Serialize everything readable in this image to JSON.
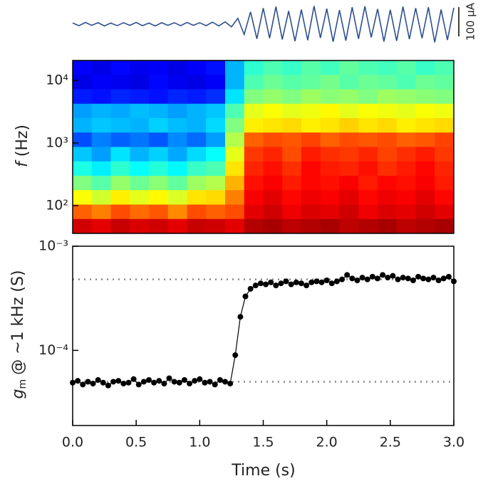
{
  "chart_data": [
    {
      "type": "trace",
      "color": "#2d4f8f",
      "xlim": [
        0,
        3
      ],
      "ylim": [
        -68,
        68
      ],
      "scale_bar": {
        "value": 100,
        "label": "100 μA"
      },
      "x": [
        0,
        0.05,
        0.1,
        0.15,
        0.2,
        0.25,
        0.3,
        0.35,
        0.4,
        0.45,
        0.5,
        0.55,
        0.6,
        0.65,
        0.7,
        0.75,
        0.8,
        0.85,
        0.9,
        0.95,
        1,
        1.05,
        1.1,
        1.15,
        1.2,
        1.25,
        1.3,
        1.35,
        1.4,
        1.45,
        1.5,
        1.55,
        1.6,
        1.65,
        1.7,
        1.75,
        1.8,
        1.85,
        1.9,
        1.95,
        2,
        2.05,
        2.1,
        2.15,
        2.2,
        2.25,
        2.3,
        2.35,
        2.4,
        2.45,
        2.5,
        2.55,
        2.6,
        2.65,
        2.7,
        2.75,
        2.8,
        2.85,
        2.9,
        2.95,
        3
      ],
      "values": [
        4,
        -5,
        6,
        -4,
        5,
        -6,
        4,
        -5,
        5,
        -4,
        6,
        -5,
        4,
        -6,
        5,
        -4,
        5,
        -5,
        6,
        -4,
        5,
        -5,
        7,
        -6,
        8,
        -9,
        20,
        -35,
        42,
        -50,
        55,
        -48,
        60,
        -52,
        45,
        -58,
        50,
        -55,
        62,
        -47,
        53,
        -60,
        48,
        -56,
        58,
        -50,
        61,
        -45,
        52,
        -59,
        49,
        -57,
        60,
        -51,
        55,
        -48,
        58,
        -62,
        50,
        -54,
        56
      ]
    },
    {
      "type": "heatmap",
      "colormap": "jet",
      "zlim": [
        0,
        1
      ],
      "xlim": [
        0,
        3
      ],
      "ylim": [
        36,
        20800
      ],
      "log_y": true,
      "ylabel": {
        "symbol": "f",
        "text": "(Hz)"
      },
      "yticks": [
        {
          "value": 100,
          "label": "10²"
        },
        {
          "value": 1000,
          "label": "10³"
        },
        {
          "value": 10000,
          "label": "10⁴"
        }
      ],
      "z": [
        [
          0.12,
          0.1,
          0.13,
          0.11,
          0.12,
          0.1,
          0.12,
          0.14,
          0.3,
          0.42,
          0.45,
          0.43,
          0.46,
          0.44,
          0.47,
          0.45,
          0.44,
          0.46,
          0.43,
          0.45
        ],
        [
          0.1,
          0.12,
          0.11,
          0.1,
          0.13,
          0.11,
          0.1,
          0.12,
          0.3,
          0.45,
          0.48,
          0.46,
          0.47,
          0.49,
          0.46,
          0.48,
          0.47,
          0.45,
          0.48,
          0.47
        ],
        [
          0.15,
          0.14,
          0.16,
          0.15,
          0.14,
          0.16,
          0.15,
          0.17,
          0.35,
          0.5,
          0.52,
          0.5,
          0.53,
          0.51,
          0.52,
          0.5,
          0.53,
          0.52,
          0.51,
          0.5
        ],
        [
          0.28,
          0.3,
          0.29,
          0.31,
          0.3,
          0.28,
          0.3,
          0.32,
          0.45,
          0.6,
          0.62,
          0.6,
          0.61,
          0.63,
          0.6,
          0.62,
          0.61,
          0.6,
          0.62,
          0.61
        ],
        [
          0.3,
          0.32,
          0.31,
          0.3,
          0.33,
          0.31,
          0.3,
          0.34,
          0.5,
          0.64,
          0.65,
          0.66,
          0.64,
          0.65,
          0.67,
          0.65,
          0.66,
          0.64,
          0.65,
          0.66
        ],
        [
          0.2,
          0.25,
          0.22,
          0.24,
          0.21,
          0.26,
          0.23,
          0.28,
          0.55,
          0.78,
          0.8,
          0.79,
          0.81,
          0.78,
          0.8,
          0.79,
          0.8,
          0.78,
          0.79,
          0.81
        ],
        [
          0.32,
          0.28,
          0.35,
          0.3,
          0.33,
          0.29,
          0.34,
          0.38,
          0.6,
          0.82,
          0.84,
          0.8,
          0.85,
          0.83,
          0.82,
          0.84,
          0.81,
          0.83,
          0.85,
          0.82
        ],
        [
          0.4,
          0.36,
          0.42,
          0.38,
          0.41,
          0.37,
          0.43,
          0.45,
          0.65,
          0.84,
          0.86,
          0.83,
          0.87,
          0.85,
          0.84,
          0.86,
          0.83,
          0.85,
          0.87,
          0.84
        ],
        [
          0.5,
          0.46,
          0.52,
          0.48,
          0.51,
          0.47,
          0.53,
          0.55,
          0.7,
          0.86,
          0.88,
          0.85,
          0.87,
          0.86,
          0.88,
          0.85,
          0.87,
          0.86,
          0.88,
          0.85
        ],
        [
          0.62,
          0.58,
          0.64,
          0.6,
          0.63,
          0.59,
          0.65,
          0.66,
          0.75,
          0.88,
          0.9,
          0.87,
          0.89,
          0.88,
          0.9,
          0.87,
          0.89,
          0.88,
          0.9,
          0.87
        ],
        [
          0.78,
          0.75,
          0.8,
          0.77,
          0.79,
          0.74,
          0.8,
          0.78,
          0.8,
          0.9,
          0.92,
          0.89,
          0.91,
          0.9,
          0.92,
          0.89,
          0.91,
          0.9,
          0.92,
          0.9
        ],
        [
          0.92,
          0.9,
          0.93,
          0.91,
          0.92,
          0.9,
          0.93,
          0.92,
          0.9,
          0.95,
          0.96,
          0.94,
          0.95,
          0.96,
          0.94,
          0.95,
          0.96,
          0.94,
          0.95,
          0.96
        ]
      ]
    },
    {
      "type": "line",
      "log_y": true,
      "xlim": [
        0,
        3
      ],
      "ylim": [
        1.9e-05,
        0.001
      ],
      "xlabel": "Time (s)",
      "ylabel": {
        "symbol": "g",
        "subscript": "m",
        "text": "@ ~1 kHz (S)"
      },
      "xticks": [
        {
          "value": 0,
          "label": "0.0"
        },
        0.5,
        {
          "value": 1,
          "label": "1.0"
        },
        1.5,
        {
          "value": 2,
          "label": "2.0"
        },
        2.5,
        {
          "value": 3,
          "label": "3.0"
        }
      ],
      "yticks": [
        {
          "value": 0.0001,
          "label": "10⁻⁴"
        },
        {
          "value": 0.001,
          "label": "10⁻³"
        }
      ],
      "hlines": [
        5e-05,
        0.00048
      ],
      "x": [
        0,
        0.04,
        0.08,
        0.12,
        0.16,
        0.2,
        0.24,
        0.28,
        0.32,
        0.36,
        0.4,
        0.44,
        0.48,
        0.52,
        0.56,
        0.6,
        0.64,
        0.68,
        0.72,
        0.76,
        0.8,
        0.84,
        0.88,
        0.92,
        0.96,
        1,
        1.04,
        1.08,
        1.12,
        1.16,
        1.2,
        1.24,
        1.28,
        1.32,
        1.36,
        1.4,
        1.44,
        1.48,
        1.52,
        1.56,
        1.6,
        1.64,
        1.68,
        1.72,
        1.76,
        1.8,
        1.84,
        1.88,
        1.92,
        1.96,
        2,
        2.04,
        2.08,
        2.12,
        2.16,
        2.2,
        2.24,
        2.28,
        2.32,
        2.36,
        2.4,
        2.44,
        2.48,
        2.52,
        2.56,
        2.6,
        2.64,
        2.68,
        2.72,
        2.76,
        2.8,
        2.84,
        2.88,
        2.92,
        2.96,
        3
      ],
      "series": [
        {
          "color": "#000000",
          "values": [
            4.9e-05,
            5.1e-05,
            4.7e-05,
            5e-05,
            4.8e-05,
            5.2e-05,
            4.9e-05,
            4.6e-05,
            5e-05,
            5.1e-05,
            4.8e-05,
            4.9e-05,
            5.3e-05,
            4.7e-05,
            5e-05,
            5.2e-05,
            4.9e-05,
            5.1e-05,
            4.8e-05,
            5.4e-05,
            5e-05,
            4.9e-05,
            5.2e-05,
            4.8e-05,
            5.1e-05,
            5.3e-05,
            4.9e-05,
            5e-05,
            4.7e-05,
            5.2e-05,
            5e-05,
            4.8e-05,
            9e-05,
            0.00021,
            0.00033,
            0.00039,
            0.00042,
            0.00044,
            0.00043,
            0.00045,
            0.00042,
            0.00044,
            0.00046,
            0.00043,
            0.00045,
            0.00044,
            0.00042,
            0.00045,
            0.00046,
            0.00045,
            0.00047,
            0.00044,
            0.00046,
            0.00048,
            0.00053,
            0.00049,
            0.00047,
            0.0005,
            0.00048,
            0.00051,
            0.00049,
            0.00053,
            0.0005,
            0.00052,
            0.00048,
            0.0005,
            0.00049,
            0.00047,
            0.00051,
            0.00049,
            0.00048,
            0.0005,
            0.00047,
            0.00049,
            0.00051,
            0.00046
          ]
        }
      ]
    }
  ]
}
